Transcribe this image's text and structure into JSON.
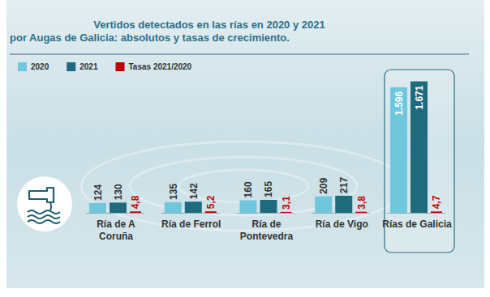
{
  "chart_data": {
    "type": "bar",
    "title": "Vertidos detectados en las rías en 2020 y 2021",
    "subtitle": "por Augas de Galicia: absolutos y tasas de crecimiento.",
    "categories": [
      "Ría de A Coruña",
      "Ría de Ferrol",
      "Ría de Pontevedra",
      "Ría de Vigo",
      "Rías de Galicia"
    ],
    "series": [
      {
        "name": "2020",
        "color": "#6fc7dd",
        "values": [
          124,
          135,
          160,
          209,
          1596
        ],
        "value_labels": [
          "124",
          "135",
          "160",
          "209",
          "1.596"
        ]
      },
      {
        "name": "2021",
        "color": "#1f6b7e",
        "values": [
          130,
          142,
          165,
          217,
          1671
        ],
        "value_labels": [
          "130",
          "142",
          "165",
          "217",
          "1.671"
        ]
      },
      {
        "name": "Tasas 2021/2020",
        "color": "#c00000",
        "axis": "y2",
        "values": [
          4.8,
          5.2,
          3.1,
          3.8,
          4.7
        ],
        "value_labels": [
          "4,8",
          "5,2",
          "3,1",
          "3,8",
          "4,7"
        ]
      }
    ],
    "ylim": [
      0,
      1800
    ],
    "yticks": [],
    "y2lim": [
      0,
      500
    ],
    "y2ticks": [],
    "grid": false,
    "legend": "top-left",
    "data_labels": true,
    "tick_labels": false
  }
}
